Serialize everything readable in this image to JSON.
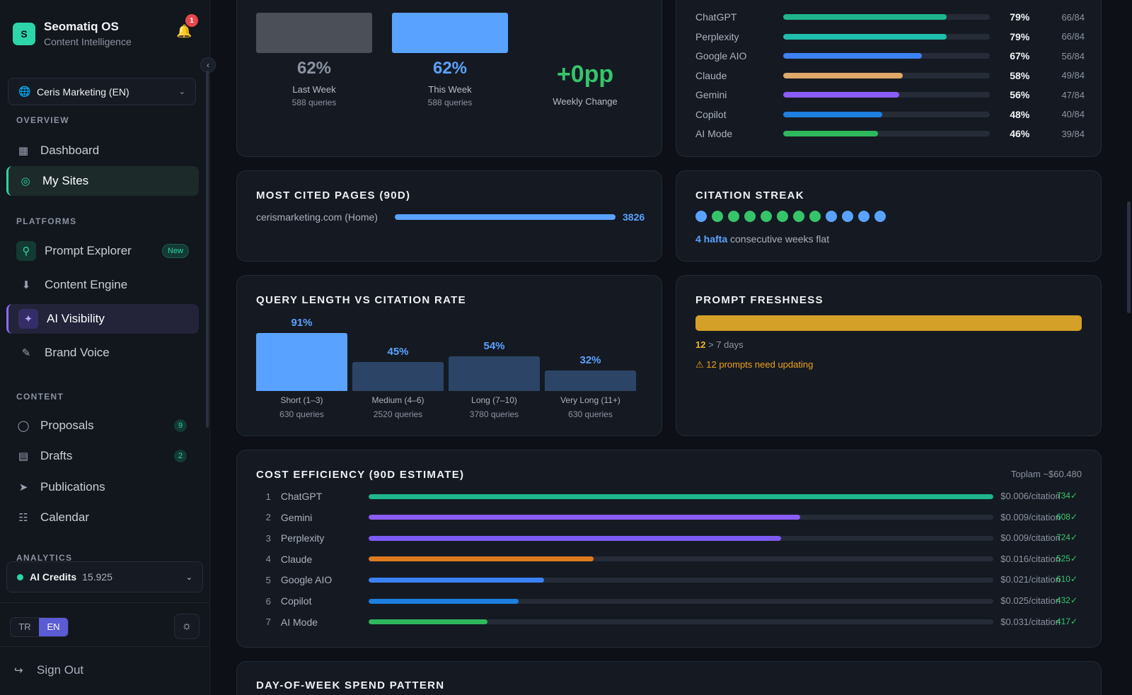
{
  "brand": {
    "logo_letter": "S",
    "title": "Seomatiq OS",
    "subtitle": "Content Intelligence",
    "notifications": "1"
  },
  "site_selector": {
    "value": "Ceris Marketing (EN)"
  },
  "sections": {
    "overview": "OVERVIEW",
    "platforms": "PLATFORMS",
    "content": "CONTENT",
    "analytics": "ANALYTICS"
  },
  "nav": {
    "dashboard": "Dashboard",
    "my_sites": "My Sites",
    "prompt_explorer": "Prompt Explorer",
    "prompt_explorer_badge": "New",
    "content_engine": "Content Engine",
    "ai_visibility": "AI Visibility",
    "brand_voice": "Brand Voice",
    "proposals": "Proposals",
    "proposals_count": "9",
    "drafts": "Drafts",
    "drafts_count": "2",
    "publications": "Publications",
    "calendar": "Calendar"
  },
  "credits": {
    "label": "AI Credits",
    "value": "15.925"
  },
  "language": {
    "tr": "TR",
    "en": "EN",
    "selected": "EN"
  },
  "sign_out": "Sign Out",
  "weekly": {
    "last_week": {
      "value": "62%",
      "label": "Last Week",
      "queries": "588 queries",
      "color": "#4a4f58"
    },
    "this_week": {
      "value": "62%",
      "label": "This Week",
      "queries": "588 queries",
      "color": "#5aa2ff"
    },
    "change": {
      "value": "+0pp",
      "label": "Weekly Change",
      "color": "#36c46b"
    }
  },
  "platform_rates": [
    {
      "name": "ChatGPT",
      "pct": "79%",
      "frac": "66/84",
      "level": 0.79,
      "color": "#1fb58f"
    },
    {
      "name": "Perplexity",
      "pct": "79%",
      "frac": "66/84",
      "level": 0.79,
      "color": "#1fbfae"
    },
    {
      "name": "Google AIO",
      "pct": "67%",
      "frac": "56/84",
      "level": 0.67,
      "color": "#3b82f6"
    },
    {
      "name": "Claude",
      "pct": "58%",
      "frac": "49/84",
      "level": 0.58,
      "color": "#e0a868"
    },
    {
      "name": "Gemini",
      "pct": "56%",
      "frac": "47/84",
      "level": 0.56,
      "color": "#8b5cf6"
    },
    {
      "name": "Copilot",
      "pct": "48%",
      "frac": "40/84",
      "level": 0.48,
      "color": "#1d7fe0"
    },
    {
      "name": "AI Mode",
      "pct": "46%",
      "frac": "39/84",
      "level": 0.46,
      "color": "#2eb85c"
    }
  ],
  "most_cited": {
    "title": "MOST CITED PAGES (90D)",
    "rows": [
      {
        "page": "cerismarketing.com (Home)",
        "count": "3826"
      }
    ]
  },
  "streak": {
    "title": "CITATION STREAK",
    "dots": [
      "#5aa2ff",
      "#36c46b",
      "#36c46b",
      "#36c46b",
      "#36c46b",
      "#36c46b",
      "#36c46b",
      "#36c46b",
      "#5aa2ff",
      "#5aa2ff",
      "#5aa2ff",
      "#5aa2ff"
    ],
    "highlight": "4 hafta",
    "text": "consecutive weeks flat"
  },
  "query_length": {
    "title": "QUERY LENGTH VS CITATION RATE",
    "buckets": [
      {
        "label": "Short (1–3)",
        "queries": "630 queries",
        "pct": "91%",
        "rate": 91,
        "color": "#5aa2ff"
      },
      {
        "label": "Medium (4–6)",
        "queries": "2520 queries",
        "pct": "45%",
        "rate": 45,
        "color": "#2c4566"
      },
      {
        "label": "Long (7–10)",
        "queries": "3780 queries",
        "pct": "54%",
        "rate": 54,
        "color": "#2c4566"
      },
      {
        "label": "Very Long (11+)",
        "queries": "630 queries",
        "pct": "32%",
        "rate": 32,
        "color": "#2c4566"
      }
    ]
  },
  "freshness": {
    "title": "PROMPT FRESHNESS",
    "stale_count": "12",
    "stale_text": "> 7 days",
    "warning": "⚠ 12 prompts need updating",
    "bar_color": "#d4a027"
  },
  "cost": {
    "title": "COST EFFICIENCY (90D ESTIMATE)",
    "total": "Toplam ~$60.480",
    "rows": [
      {
        "rank": "1",
        "name": "ChatGPT",
        "rate": "$0.006/citation",
        "count": "734✓",
        "level": 1.0,
        "color": "#1fb58f"
      },
      {
        "rank": "2",
        "name": "Gemini",
        "rate": "$0.009/citation",
        "count": "608✓",
        "level": 0.69,
        "color": "#8b5cf6"
      },
      {
        "rank": "3",
        "name": "Perplexity",
        "rate": "$0.009/citation",
        "count": "724✓",
        "level": 0.66,
        "color": "#7c5cf6"
      },
      {
        "rank": "4",
        "name": "Claude",
        "rate": "$0.016/citation",
        "count": "525✓",
        "level": 0.36,
        "color": "#e07a1f"
      },
      {
        "rank": "5",
        "name": "Google AIO",
        "rate": "$0.021/citation",
        "count": "610✓",
        "level": 0.28,
        "color": "#3b82f6"
      },
      {
        "rank": "6",
        "name": "Copilot",
        "rate": "$0.025/citation",
        "count": "432✓",
        "level": 0.24,
        "color": "#1d7fe0"
      },
      {
        "rank": "7",
        "name": "AI Mode",
        "rate": "$0.031/citation",
        "count": "417✓",
        "level": 0.19,
        "color": "#2eb85c"
      }
    ]
  },
  "day_of_week": {
    "title": "DAY-OF-WEEK SPEND PATTERN"
  }
}
